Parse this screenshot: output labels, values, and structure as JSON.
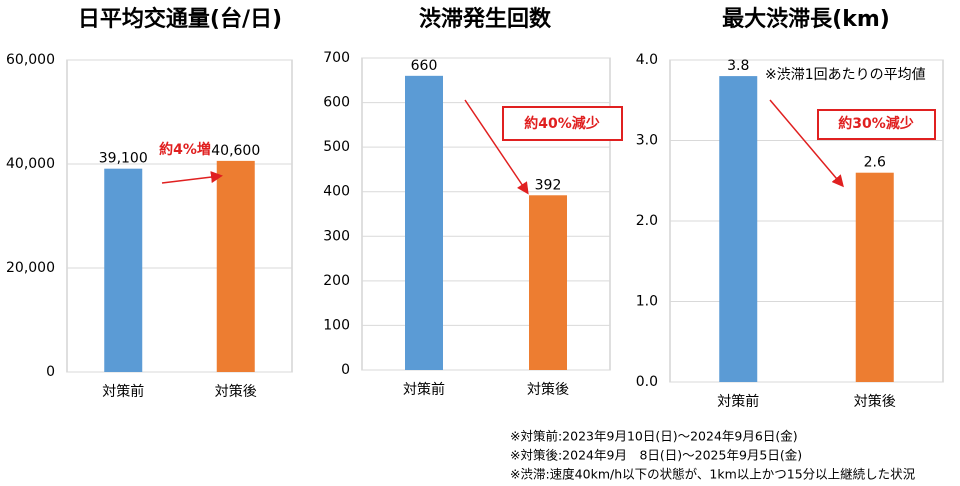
{
  "chart_data": [
    {
      "type": "bar",
      "title": "日平均交通量(台/日)",
      "categories": [
        "対策前",
        "対策後"
      ],
      "values": [
        39100,
        40600
      ],
      "value_labels": [
        "39,100",
        "40,600"
      ],
      "colors": [
        "#5b9bd5",
        "#ed7d31"
      ],
      "ylim": [
        0,
        60000
      ],
      "yticks": [
        0,
        {
          "value": 20000,
          "label": "20,000"
        },
        {
          "value": 40000,
          "label": "40,000"
        },
        {
          "value": 60000,
          "label": "60,000"
        }
      ],
      "grid": true,
      "annotation": "約4%増"
    },
    {
      "type": "bar",
      "title": "渋滞発生回数",
      "categories": [
        "対策前",
        "対策後"
      ],
      "values": [
        660,
        392
      ],
      "colors": [
        "#5b9bd5",
        "#ed7d31"
      ],
      "ylim": [
        0,
        700
      ],
      "yticks": [
        0,
        100,
        200,
        300,
        400,
        500,
        600,
        700
      ],
      "grid": true,
      "annotation": "約40%減少"
    },
    {
      "type": "bar",
      "title": "最大渋滞長(km)",
      "categories": [
        "対策前",
        "対策後"
      ],
      "values": [
        3.8,
        2.6
      ],
      "colors": [
        "#5b9bd5",
        "#ed7d31"
      ],
      "ylim": [
        0,
        4
      ],
      "yticks": [
        {
          "value": 0,
          "label": "0.0"
        },
        {
          "value": 1,
          "label": "1.0"
        },
        {
          "value": 2,
          "label": "2.0"
        },
        {
          "value": 3,
          "label": "3.0"
        },
        {
          "value": 4,
          "label": "4.0"
        }
      ],
      "grid": true,
      "annotation": "約30%減少",
      "note": "※渋滞1回あたりの平均値"
    }
  ],
  "footnotes": [
    "※対策前:2023年9月10日(日)～2024年9月6日(金)",
    "※対策後:2024年9月　8日(日)～2025年9月5日(金)",
    "※渋滞:速度40km/h以下の状態が、1km以上かつ15分以上継続した状況"
  ]
}
